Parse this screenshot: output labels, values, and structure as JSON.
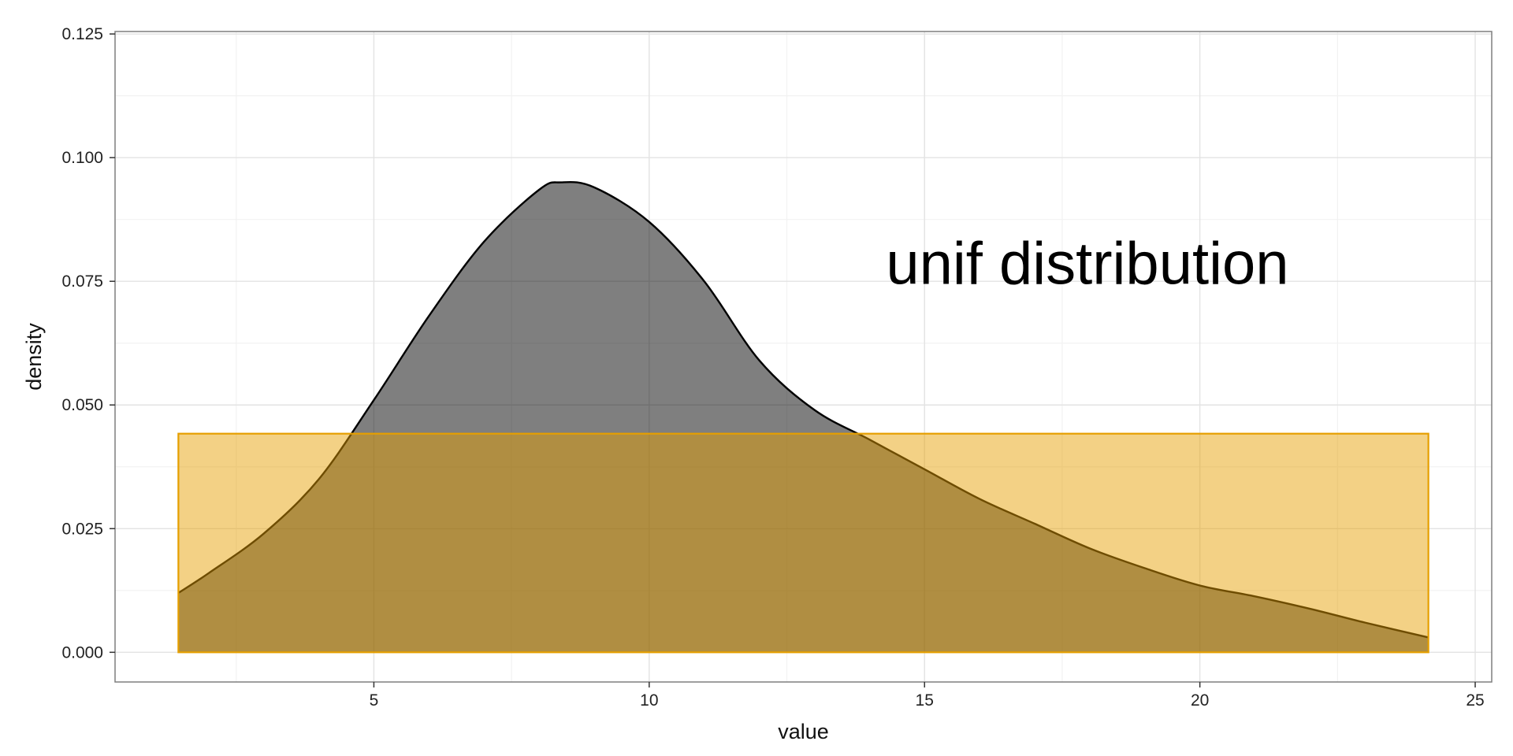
{
  "chart_data": {
    "type": "area",
    "title": "",
    "xlabel": "value",
    "ylabel": "density",
    "xlim": [
      0.3,
      25.3
    ],
    "ylim": [
      -0.006,
      0.1255
    ],
    "x_ticks": [
      5,
      10,
      15,
      20,
      25
    ],
    "x_tick_labels": [
      "5",
      "10",
      "15",
      "20",
      "25"
    ],
    "y_ticks": [
      0,
      0.025,
      0.05,
      0.075,
      0.1,
      0.125
    ],
    "y_tick_labels": [
      "0.000",
      "0.025",
      "0.050",
      "0.075",
      "0.100",
      "0.125"
    ],
    "grid": true,
    "legend": "none",
    "annotation": {
      "text": "unif distribution",
      "x": 14.3,
      "y": 0.0745
    },
    "series": [
      {
        "kind": "density",
        "fill": "#000000",
        "fill_opacity": 0.5,
        "stroke": "#000000",
        "x": [
          1.45,
          2,
          3,
          4,
          5,
          6,
          7,
          8,
          8.4,
          9,
          10,
          11,
          12,
          13,
          14,
          15,
          16,
          17,
          18,
          19,
          20,
          21,
          22,
          23,
          24.15
        ],
        "y": [
          0.012,
          0.016,
          0.024,
          0.035,
          0.051,
          0.068,
          0.083,
          0.0935,
          0.095,
          0.094,
          0.087,
          0.075,
          0.059,
          0.049,
          0.043,
          0.037,
          0.031,
          0.026,
          0.021,
          0.017,
          0.0135,
          0.0113,
          0.0088,
          0.006,
          0.003
        ]
      },
      {
        "kind": "uniform",
        "fill": "#E69F00",
        "fill_opacity": 0.48,
        "stroke": "#E69F00",
        "x": [
          1.45,
          24.15
        ],
        "y": [
          0.0442,
          0.0442
        ]
      }
    ]
  }
}
